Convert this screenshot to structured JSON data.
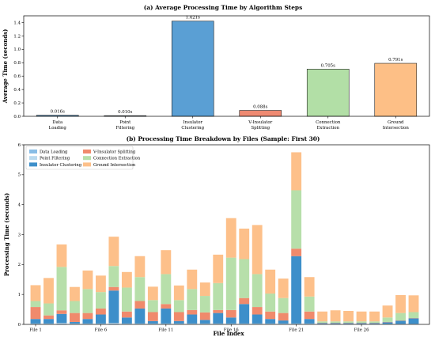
{
  "chart_data": [
    {
      "type": "bar",
      "title": "(a) Average Processing Time by Algorithm Steps",
      "xlabel": "",
      "ylabel": "Average Time (seconds)",
      "ylim": [
        0,
        1.5
      ],
      "yticks": [
        "0.0",
        "0.2",
        "0.4",
        "0.6",
        "0.8",
        "1.0",
        "1.2",
        "1.4"
      ],
      "grid": false,
      "categories": [
        [
          "Data",
          "Loading"
        ],
        [
          "Point",
          "Filtering"
        ],
        [
          "Insulator",
          "Clustering"
        ],
        [
          "V-Insulator",
          "Splitting"
        ],
        [
          "Connection",
          "Extraction"
        ],
        [
          "Ground",
          "Intersection"
        ]
      ],
      "values": [
        0.016,
        0.01,
        1.421,
        0.088,
        0.705,
        0.791
      ],
      "value_labels": [
        "0.016s",
        "0.010s",
        "1.421s",
        "0.088s",
        "0.705s",
        "0.791s"
      ],
      "colors": [
        "#5a9fd4",
        "#a6cee3",
        "#5a9fd4",
        "#ef8a72",
        "#b2dfa6",
        "#fdbf86"
      ]
    },
    {
      "type": "bar",
      "stacked": true,
      "title": "(b) Processing Time Breakdown by Files (Sample: First 30)",
      "xlabel": "File Index",
      "ylabel": "Processing Time (seconds)",
      "ylim": [
        0,
        6
      ],
      "yticks": [
        "0",
        "1",
        "2",
        "3",
        "4",
        "5",
        "6"
      ],
      "grid": false,
      "legend_position": "top-left",
      "x_tick_labels": [
        "File 1",
        "File 6",
        "File 11",
        "File 16",
        "File 21",
        "File 26"
      ],
      "x_tick_indices": [
        0,
        5,
        10,
        15,
        20,
        25
      ],
      "series": [
        {
          "name": "Data Loading",
          "color": "#88bde6",
          "values": [
            0.02,
            0.02,
            0.03,
            0.02,
            0.02,
            0.02,
            0.03,
            0.02,
            0.02,
            0.02,
            0.02,
            0.02,
            0.02,
            0.02,
            0.02,
            0.02,
            0.02,
            0.02,
            0.02,
            0.02,
            0.02,
            0.02,
            0.01,
            0.01,
            0.01,
            0.01,
            0.01,
            0.01,
            0.01,
            0.01
          ]
        },
        {
          "name": "Point Filtering",
          "color": "#b9d9ee",
          "values": [
            0.01,
            0.01,
            0.02,
            0.01,
            0.01,
            0.01,
            0.02,
            0.01,
            0.01,
            0.01,
            0.01,
            0.01,
            0.01,
            0.01,
            0.01,
            0.01,
            0.01,
            0.01,
            0.01,
            0.01,
            0.01,
            0.01,
            0.01,
            0.01,
            0.01,
            0.01,
            0.01,
            0.01,
            0.01,
            0.01
          ]
        },
        {
          "name": "Insulator Clustering",
          "color": "#3d8fca",
          "values": [
            0.15,
            0.15,
            0.3,
            0.05,
            0.15,
            0.3,
            1.08,
            0.2,
            0.5,
            0.08,
            0.5,
            0.08,
            0.3,
            0.12,
            0.35,
            0.2,
            0.65,
            0.3,
            0.15,
            0.1,
            2.25,
            0.15,
            0.02,
            0.02,
            0.02,
            0.02,
            0.02,
            0.05,
            0.1,
            0.18
          ]
        },
        {
          "name": "V-Insulator Splitting",
          "color": "#f08a6c",
          "values": [
            0.4,
            0.12,
            0.12,
            0.3,
            0.2,
            0.2,
            0.12,
            0.2,
            0.25,
            0.3,
            0.15,
            0.3,
            0.15,
            0.25,
            0.1,
            0.25,
            0.2,
            0.25,
            0.25,
            0.25,
            0.25,
            0.25,
            0.01,
            0.01,
            0.01,
            0.01,
            0.01,
            0.01,
            0.01,
            0.01
          ]
        },
        {
          "name": "Connection Extraction",
          "color": "#b7dfaa",
          "values": [
            0.2,
            0.4,
            1.45,
            0.4,
            0.8,
            0.55,
            0.7,
            0.8,
            0.8,
            0.4,
            1.0,
            0.4,
            0.7,
            0.55,
            0.9,
            1.75,
            1.3,
            1.1,
            0.6,
            0.5,
            1.95,
            0.5,
            0.05,
            0.05,
            0.05,
            0.05,
            0.05,
            0.15,
            0.25,
            0.2
          ]
        },
        {
          "name": "Ground Intersection",
          "color": "#fdc08a",
          "values": [
            0.53,
            0.85,
            0.75,
            0.47,
            0.62,
            0.55,
            0.98,
            0.52,
            0.7,
            0.45,
            0.8,
            0.49,
            0.65,
            0.45,
            0.95,
            1.32,
            1.02,
            1.64,
            0.8,
            0.65,
            1.27,
            0.65,
            0.33,
            0.37,
            0.35,
            0.33,
            0.33,
            0.4,
            0.6,
            0.56
          ]
        }
      ]
    }
  ]
}
